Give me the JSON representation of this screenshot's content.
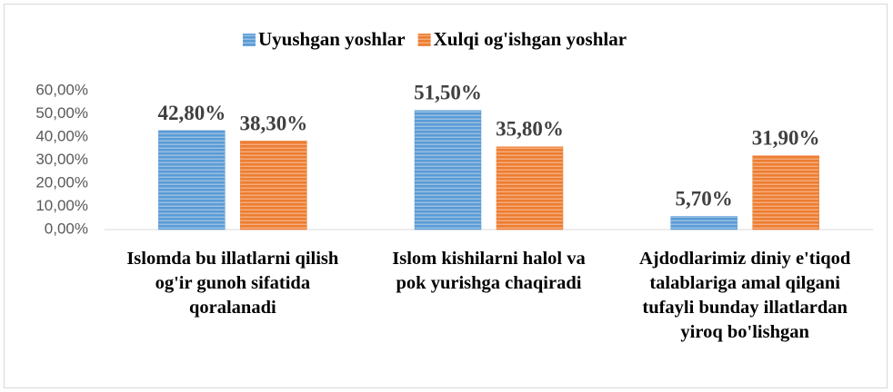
{
  "chart_data": {
    "type": "bar",
    "categories": [
      "Islomda bu illatlarni qilish og'ir gunoh sifatida qoralanadi",
      "Islom kishilarni halol va pok yurishga chaqiradi",
      "Ajdodlarimiz diniy e'tiqod talablariga amal qilgani tufayli bunday illatlardan yiroq bo'lishgan"
    ],
    "series": [
      {
        "name": "Uyushgan yoshlar",
        "color": "#5b9bd5",
        "values": [
          42.8,
          51.5,
          5.7
        ],
        "value_labels": [
          "42,80%",
          "51,50%",
          "5,70%"
        ]
      },
      {
        "name": "Xulqi og'ishgan yoshlar",
        "color": "#ed7d31",
        "values": [
          38.3,
          35.8,
          31.9
        ],
        "value_labels": [
          "38,30%",
          "35,80%",
          "31,90%"
        ]
      }
    ],
    "ylim": [
      0,
      60
    ],
    "yticks": [
      {
        "value": 0,
        "label": "0,00%"
      },
      {
        "value": 10,
        "label": "10,00%"
      },
      {
        "value": 20,
        "label": "20,00%"
      },
      {
        "value": 30,
        "label": "30,00%"
      },
      {
        "value": 40,
        "label": "40,00%"
      },
      {
        "value": 50,
        "label": "50,00%"
      },
      {
        "value": 60,
        "label": "60,00%"
      }
    ],
    "legend": "top",
    "grid": false
  }
}
